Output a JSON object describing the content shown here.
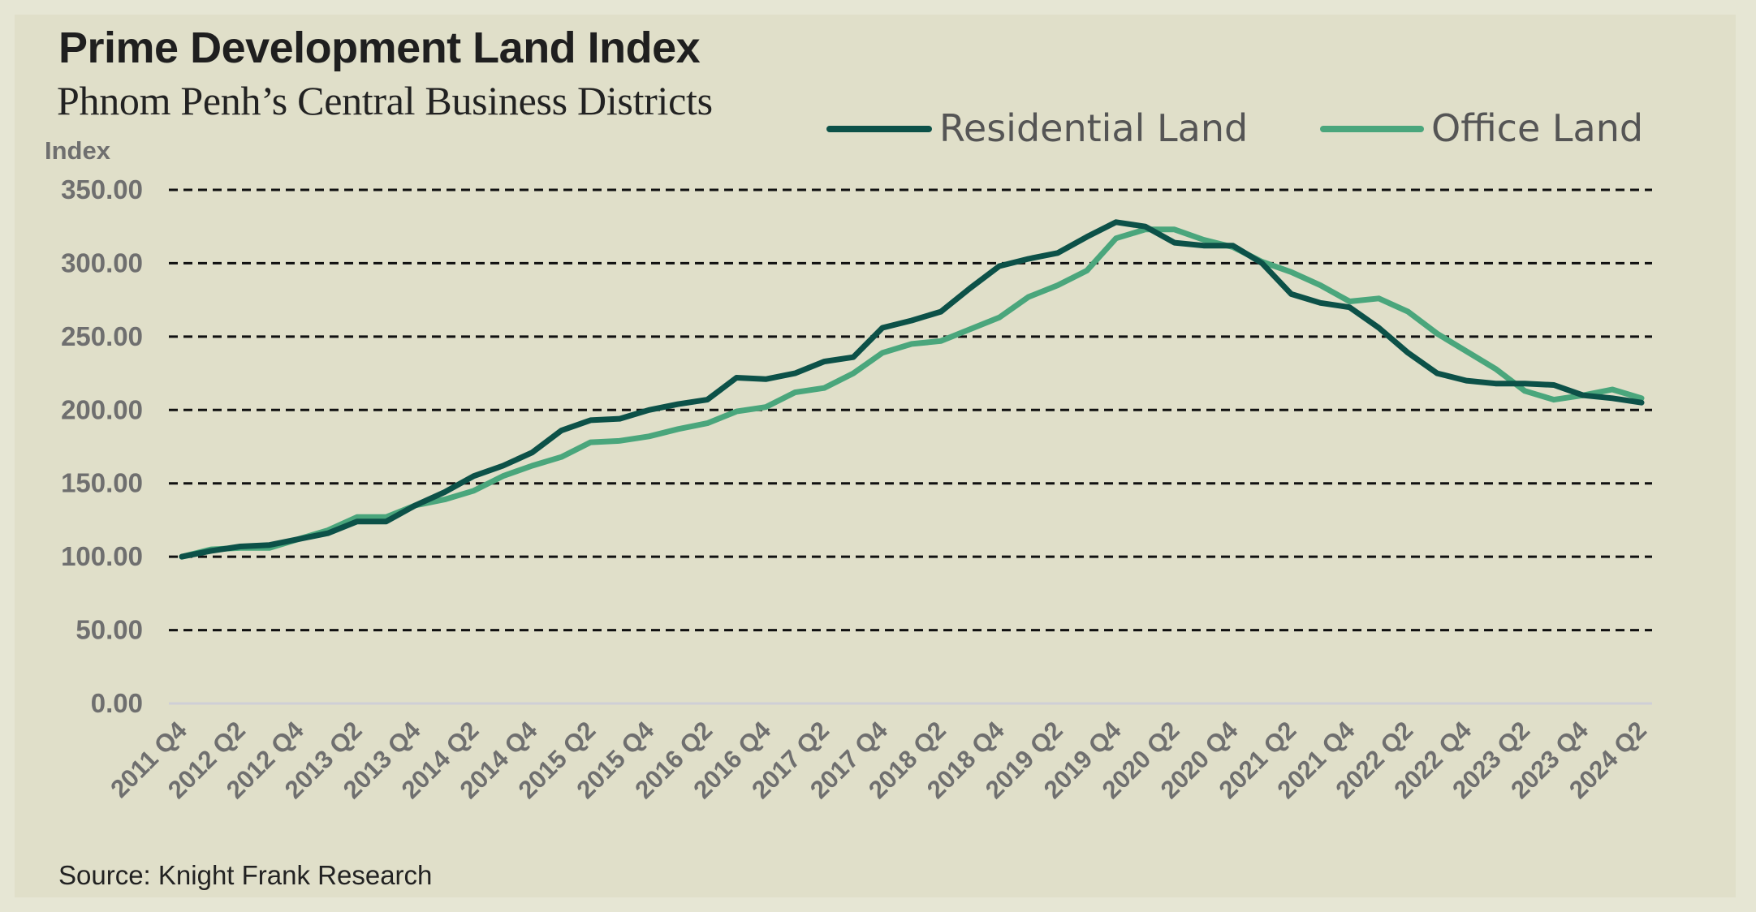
{
  "title": "Prime Development Land Index",
  "subtitle": "Phnom Penh’s Central Business Districts",
  "source": "Source: Knight Frank Research",
  "chart_data": {
    "type": "line",
    "title": "Prime Development Land Index",
    "subtitle": "Phnom Penh’s Central Business Districts",
    "ylabel": "Index",
    "xlabel": "",
    "ylim": [
      0,
      350
    ],
    "yticks": [
      0,
      50,
      100,
      150,
      200,
      250,
      300,
      350
    ],
    "ytick_labels": [
      "0.00",
      "50.00",
      "100.00",
      "150.00",
      "200.00",
      "250.00",
      "300.00",
      "350.00"
    ],
    "grid": "horizontal dashed",
    "legend_position": "top-right",
    "x": [
      "2011 Q4",
      "2012 Q1",
      "2012 Q2",
      "2012 Q3",
      "2012 Q4",
      "2013 Q1",
      "2013 Q2",
      "2013 Q3",
      "2013 Q4",
      "2014 Q1",
      "2014 Q2",
      "2014 Q3",
      "2014 Q4",
      "2015 Q1",
      "2015 Q2",
      "2015 Q3",
      "2015 Q4",
      "2016 Q1",
      "2016 Q2",
      "2016 Q3",
      "2016 Q4",
      "2017 Q1",
      "2017 Q2",
      "2017 Q3",
      "2017 Q4",
      "2018 Q1",
      "2018 Q2",
      "2018 Q3",
      "2018 Q4",
      "2019 Q1",
      "2019 Q2",
      "2019 Q3",
      "2019 Q4",
      "2020 Q1",
      "2020 Q2",
      "2020 Q3",
      "2020 Q4",
      "2021 Q1",
      "2021 Q2",
      "2021 Q3",
      "2021 Q4",
      "2022 Q1",
      "2022 Q2",
      "2022 Q3",
      "2022 Q4",
      "2023 Q1",
      "2023 Q2",
      "2023 Q3",
      "2023 Q4",
      "2024 Q1",
      "2024 Q2"
    ],
    "xtick_labels": [
      "2011 Q4",
      "2012 Q2",
      "2012 Q4",
      "2013 Q2",
      "2013 Q4",
      "2014 Q2",
      "2014 Q4",
      "2015 Q2",
      "2015 Q4",
      "2016 Q2",
      "2016 Q4",
      "2017 Q2",
      "2017 Q4",
      "2018 Q2",
      "2018 Q4",
      "2019 Q2",
      "2019 Q4",
      "2020 Q2",
      "2020 Q4",
      "2021 Q2",
      "2021 Q4",
      "2022 Q2",
      "2022 Q4",
      "2023 Q2",
      "2023 Q4",
      "2024 Q2"
    ],
    "series": [
      {
        "name": "Residential Land",
        "color": "#0c5148",
        "values": [
          100,
          104,
          107,
          108,
          112,
          116,
          124,
          124,
          135,
          144,
          155,
          162,
          171,
          186,
          193,
          194,
          200,
          204,
          207,
          222,
          221,
          225,
          233,
          236,
          256,
          261,
          267,
          283,
          298,
          303,
          307,
          318,
          328,
          325,
          314,
          312,
          312,
          300,
          279,
          273,
          270,
          256,
          239,
          225,
          220,
          218,
          218,
          217,
          210,
          208,
          205
        ]
      },
      {
        "name": "Office Land",
        "color": "#4aa67c",
        "values": [
          100,
          105,
          106,
          106,
          112,
          118,
          127,
          127,
          135,
          139,
          145,
          155,
          162,
          168,
          178,
          179,
          182,
          187,
          191,
          199,
          202,
          212,
          215,
          225,
          239,
          245,
          247,
          255,
          263,
          277,
          285,
          295,
          317,
          323,
          323,
          316,
          311,
          301,
          294,
          285,
          274,
          276,
          267,
          252,
          240,
          228,
          213,
          207,
          210,
          214,
          208
        ]
      }
    ]
  }
}
